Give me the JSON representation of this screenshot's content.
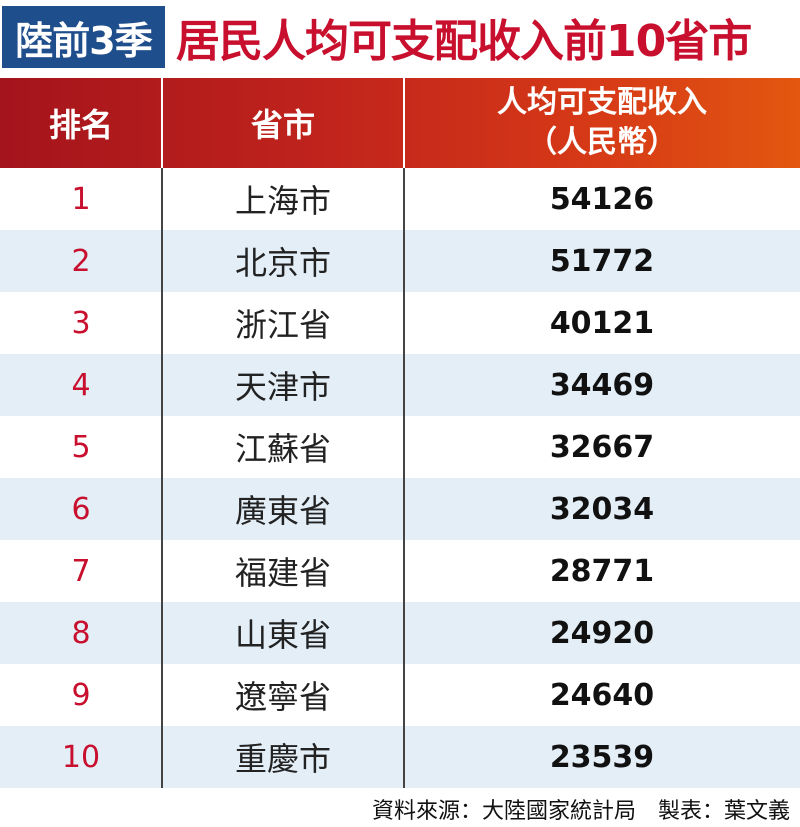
{
  "title": {
    "tag": "陸前3季",
    "text": "居民人均可支配收入前10省市"
  },
  "table": {
    "headers": {
      "rank": "排名",
      "province": "省市",
      "income_line1": "人均可支配收入",
      "income_line2": "（人民幣）"
    }
  },
  "chart_data": {
    "type": "table",
    "columns": [
      "排名",
      "省市",
      "人均可支配收入（人民幣）"
    ],
    "rows": [
      {
        "rank": "1",
        "province": "上海市",
        "income": "54126"
      },
      {
        "rank": "2",
        "province": "北京市",
        "income": "51772"
      },
      {
        "rank": "3",
        "province": "浙江省",
        "income": "40121"
      },
      {
        "rank": "4",
        "province": "天津市",
        "income": "34469"
      },
      {
        "rank": "5",
        "province": "江蘇省",
        "income": "32667"
      },
      {
        "rank": "6",
        "province": "廣東省",
        "income": "32034"
      },
      {
        "rank": "7",
        "province": "福建省",
        "income": "28771"
      },
      {
        "rank": "8",
        "province": "山東省",
        "income": "24920"
      },
      {
        "rank": "9",
        "province": "遼寧省",
        "income": "24640"
      },
      {
        "rank": "10",
        "province": "重慶市",
        "income": "23539"
      }
    ]
  },
  "footer": {
    "source": "資料來源：大陸國家統計局　製表：葉文義"
  },
  "colors": {
    "title_tag_bg": "#1f4e8c",
    "title_text": "#c8102e",
    "header_gradient_start": "#a4141c",
    "header_gradient_end": "#e35710",
    "alt_row_bg": "#e3eef7",
    "rank_text": "#c8102e"
  }
}
